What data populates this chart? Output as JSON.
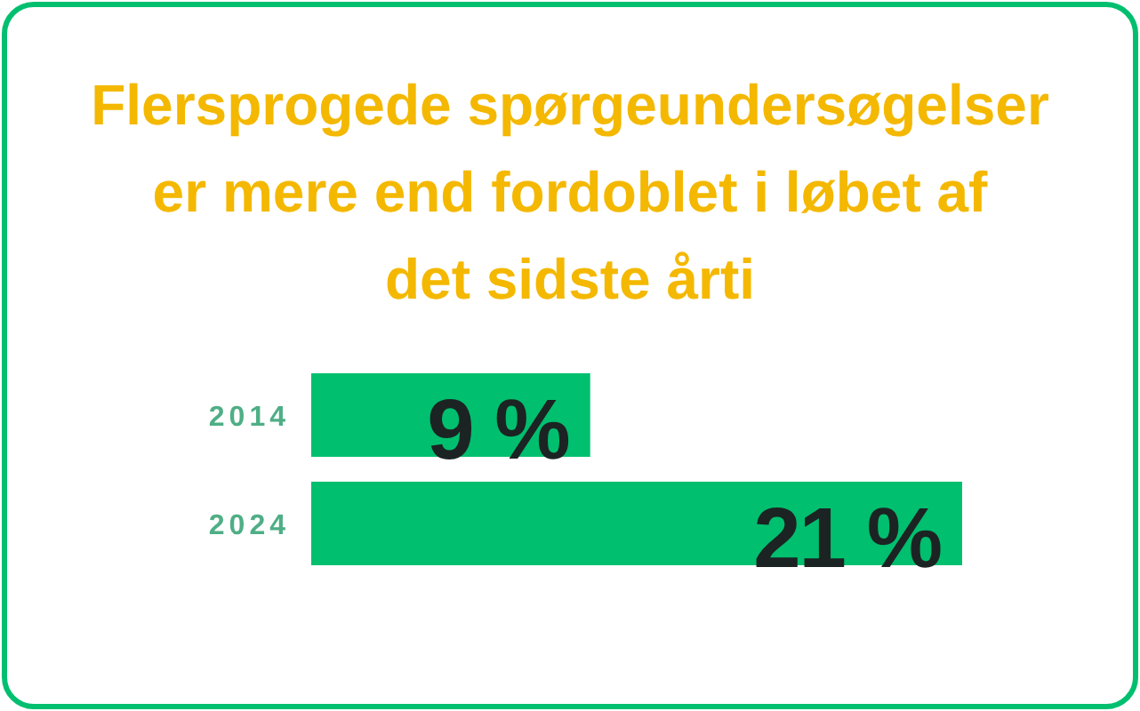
{
  "chart_data": {
    "type": "bar",
    "title": "Flersprogede spørgeundersøgelser\ner mere end fordoblet i løbet af\ndet sidste årti",
    "categories": [
      "2014",
      "2024"
    ],
    "values": [
      9,
      21
    ],
    "value_labels": [
      "9 %",
      "21 %"
    ],
    "color": "#00bf6f",
    "orientation": "horizontal",
    "tick_labels": "y"
  }
}
